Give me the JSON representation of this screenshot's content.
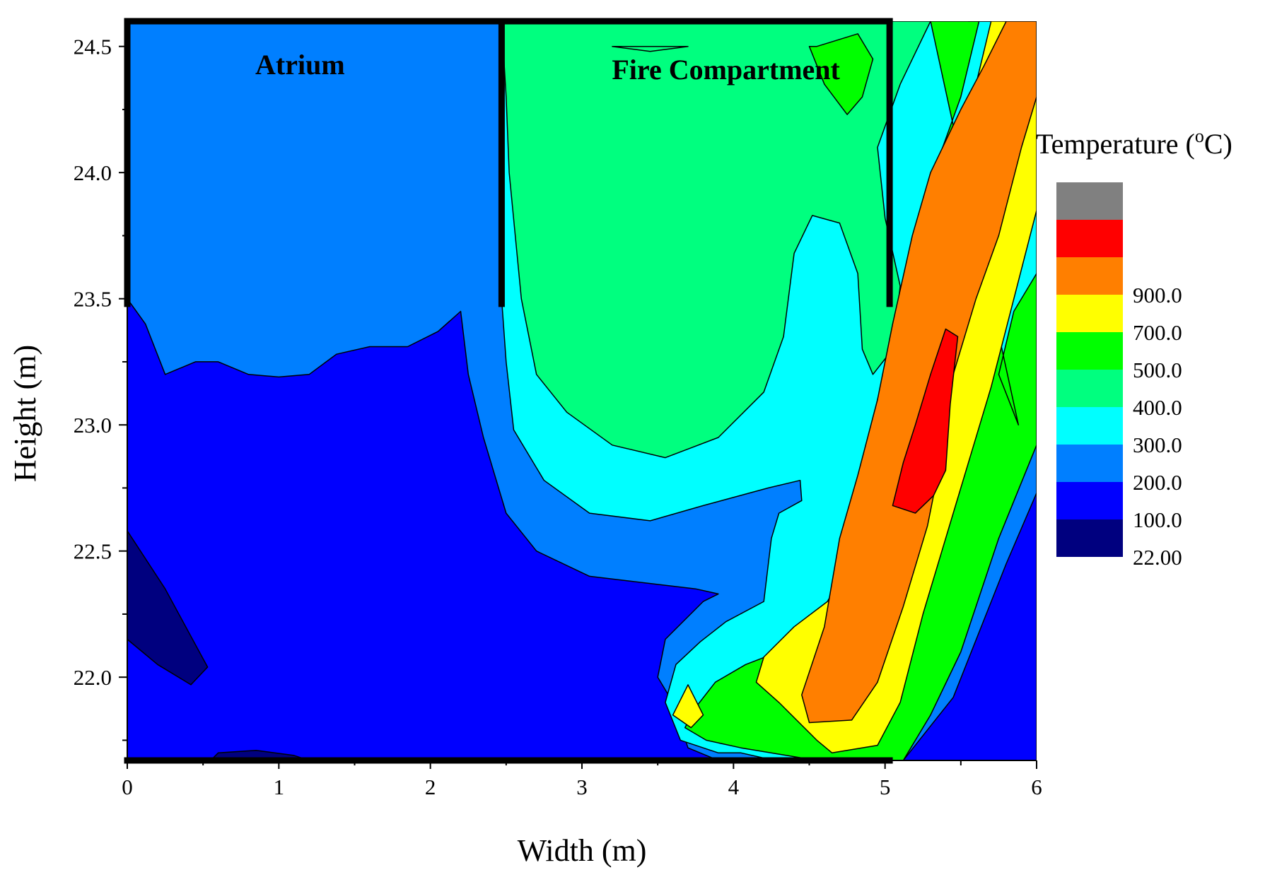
{
  "chart_data": {
    "type": "contour",
    "title": "",
    "xlabel": "Width (m)",
    "ylabel": "Height (m)",
    "xlim": [
      0,
      6
    ],
    "ylim": [
      21.67,
      24.6
    ],
    "x_ticks": [
      0,
      1,
      2,
      3,
      4,
      5,
      6
    ],
    "x_tick_labels": [
      "0",
      "1",
      "2",
      "3",
      "4",
      "5",
      "6"
    ],
    "y_ticks": [
      22.0,
      22.5,
      23.0,
      23.5,
      24.0,
      24.5
    ],
    "y_tick_labels": [
      "22.0",
      "22.5",
      "23.0",
      "23.5",
      "24.0",
      "24.5"
    ],
    "annotations": [
      {
        "id": "atrium",
        "text": "Atrium",
        "x": 1.14,
        "y": 24.39
      },
      {
        "id": "fire",
        "text": "Fire Compartment",
        "x": 3.95,
        "y": 24.37
      }
    ],
    "walls": [
      {
        "from": [
          0.0,
          24.6
        ],
        "to": [
          5.03,
          24.6
        ]
      },
      {
        "from": [
          0.0,
          24.6
        ],
        "to": [
          0.0,
          23.48
        ]
      },
      {
        "from": [
          2.47,
          24.6
        ],
        "to": [
          2.47,
          23.48
        ]
      },
      {
        "from": [
          5.03,
          24.6
        ],
        "to": [
          5.03,
          23.48
        ]
      },
      {
        "from": [
          0.0,
          21.67
        ],
        "to": [
          5.03,
          21.67
        ]
      }
    ],
    "legend": {
      "title": "Temperature (°C)",
      "title_main": "Temperature (",
      "title_sup": "o",
      "title_end": "C)",
      "levels": [
        {
          "label": "",
          "color": "#808080"
        },
        {
          "label": "",
          "color": "#ff0000"
        },
        {
          "label": "900.0",
          "color": "#ff7f00"
        },
        {
          "label": "700.0",
          "color": "#ffff00"
        },
        {
          "label": "500.0",
          "color": "#00ff00"
        },
        {
          "label": "400.0",
          "color": "#00ff7f"
        },
        {
          "label": "300.0",
          "color": "#00ffff"
        },
        {
          "label": "200.0",
          "color": "#007fff"
        },
        {
          "label": "100.0",
          "color": "#0000ff"
        },
        {
          "label": "22.00",
          "color": "#00007f"
        }
      ]
    },
    "regions": [
      {
        "level": "100-200",
        "color": "#0000ff",
        "points": [
          [
            0,
            21.67
          ],
          [
            6,
            21.67
          ],
          [
            6,
            24.6
          ],
          [
            0,
            24.6
          ]
        ]
      },
      {
        "level": "22-100",
        "color": "#00007f",
        "points": [
          [
            0,
            22.58
          ],
          [
            0.25,
            22.35
          ],
          [
            0.53,
            22.04
          ],
          [
            0.42,
            21.97
          ],
          [
            0.2,
            22.05
          ],
          [
            0,
            22.15
          ]
        ]
      },
      {
        "level": "22-100",
        "color": "#00007f",
        "points": [
          [
            0.55,
            21.67
          ],
          [
            0.6,
            21.7
          ],
          [
            0.85,
            21.71
          ],
          [
            1.1,
            21.69
          ],
          [
            1.2,
            21.67
          ]
        ]
      },
      {
        "level": "200-300",
        "color": "#007fff",
        "points": [
          [
            0,
            24.6
          ],
          [
            5.03,
            24.6
          ],
          [
            5.2,
            24.6
          ],
          [
            6,
            24.6
          ],
          [
            6,
            22.73
          ],
          [
            5.8,
            22.45
          ],
          [
            5.45,
            21.92
          ],
          [
            5.12,
            21.67
          ],
          [
            4.3,
            21.67
          ],
          [
            3.9,
            21.67
          ],
          [
            3.7,
            21.72
          ],
          [
            3.6,
            21.9
          ],
          [
            3.5,
            22.0
          ],
          [
            3.55,
            22.15
          ],
          [
            3.8,
            22.3
          ],
          [
            3.9,
            22.33
          ],
          [
            3.75,
            22.35
          ],
          [
            3.05,
            22.4
          ],
          [
            2.7,
            22.5
          ],
          [
            2.5,
            22.65
          ],
          [
            2.35,
            22.95
          ],
          [
            2.25,
            23.2
          ],
          [
            2.2,
            23.45
          ],
          [
            2.05,
            23.37
          ],
          [
            1.85,
            23.31
          ],
          [
            1.6,
            23.31
          ],
          [
            1.38,
            23.28
          ],
          [
            1.2,
            23.2
          ],
          [
            1.0,
            23.19
          ],
          [
            0.8,
            23.2
          ],
          [
            0.6,
            23.25
          ],
          [
            0.45,
            23.25
          ],
          [
            0.25,
            23.2
          ],
          [
            0.12,
            23.4
          ],
          [
            0,
            23.5
          ]
        ]
      },
      {
        "level": "300-400",
        "color": "#00ffff",
        "points": [
          [
            2.47,
            24.6
          ],
          [
            5.1,
            24.6
          ],
          [
            5.27,
            24.6
          ],
          [
            6,
            24.6
          ],
          [
            6,
            23.35
          ],
          [
            5.75,
            23.05
          ],
          [
            5.52,
            22.62
          ],
          [
            5.35,
            22.25
          ],
          [
            5.18,
            21.98
          ],
          [
            4.95,
            21.7
          ],
          [
            4.6,
            21.67
          ],
          [
            4.27,
            21.67
          ],
          [
            4.05,
            21.7
          ],
          [
            3.9,
            21.7
          ],
          [
            3.65,
            21.75
          ],
          [
            3.55,
            21.9
          ],
          [
            3.62,
            22.05
          ],
          [
            3.78,
            22.14
          ],
          [
            3.95,
            22.22
          ],
          [
            4.2,
            22.3
          ],
          [
            4.25,
            22.55
          ],
          [
            4.3,
            22.65
          ],
          [
            4.45,
            22.7
          ],
          [
            4.44,
            22.78
          ],
          [
            4.23,
            22.75
          ],
          [
            3.8,
            22.68
          ],
          [
            3.45,
            22.62
          ],
          [
            3.05,
            22.65
          ],
          [
            2.75,
            22.78
          ],
          [
            2.55,
            22.98
          ],
          [
            2.5,
            23.25
          ],
          [
            2.47,
            23.5
          ]
        ]
      },
      {
        "level": "400-500",
        "color": "#00ff7f",
        "points": [
          [
            2.47,
            24.6
          ],
          [
            5.05,
            24.6
          ],
          [
            5.3,
            24.6
          ],
          [
            5.1,
            24.35
          ],
          [
            4.95,
            24.1
          ],
          [
            5.0,
            23.82
          ],
          [
            5.1,
            23.55
          ],
          [
            5.05,
            23.3
          ],
          [
            4.92,
            23.2
          ],
          [
            4.85,
            23.3
          ],
          [
            4.82,
            23.6
          ],
          [
            4.7,
            23.8
          ],
          [
            4.52,
            23.83
          ],
          [
            4.4,
            23.68
          ],
          [
            4.33,
            23.35
          ],
          [
            4.2,
            23.13
          ],
          [
            3.9,
            22.95
          ],
          [
            3.55,
            22.87
          ],
          [
            3.2,
            22.92
          ],
          [
            2.9,
            23.05
          ],
          [
            2.7,
            23.2
          ],
          [
            2.6,
            23.5
          ],
          [
            2.52,
            24.0
          ],
          [
            2.5,
            24.3
          ]
        ]
      },
      {
        "level": "500-700",
        "color": "#00ff00",
        "points": [
          [
            5.3,
            24.6
          ],
          [
            5.62,
            24.6
          ],
          [
            5.5,
            24.3
          ],
          [
            5.32,
            24.0
          ],
          [
            5.18,
            23.7
          ],
          [
            5.08,
            23.4
          ],
          [
            4.95,
            23.1
          ],
          [
            4.82,
            22.7
          ],
          [
            4.7,
            22.45
          ],
          [
            4.62,
            22.26
          ],
          [
            4.38,
            22.12
          ],
          [
            4.08,
            22.05
          ],
          [
            3.88,
            21.98
          ],
          [
            3.75,
            21.88
          ],
          [
            3.68,
            21.8
          ],
          [
            3.82,
            21.75
          ],
          [
            4.05,
            21.72
          ],
          [
            4.35,
            21.69
          ],
          [
            4.55,
            21.67
          ],
          [
            5.12,
            21.67
          ],
          [
            5.3,
            21.85
          ],
          [
            5.5,
            22.1
          ],
          [
            5.75,
            22.55
          ],
          [
            6,
            22.92
          ],
          [
            6,
            23.6
          ],
          [
            5.85,
            23.45
          ],
          [
            5.75,
            23.2
          ],
          [
            5.88,
            23.0
          ]
        ]
      },
      {
        "level": "500-700",
        "color": "#00ff00",
        "points": [
          [
            4.5,
            24.5
          ],
          [
            4.55,
            24.5
          ],
          [
            4.82,
            24.55
          ],
          [
            4.92,
            24.45
          ],
          [
            4.85,
            24.3
          ],
          [
            4.75,
            24.23
          ],
          [
            4.6,
            24.35
          ]
        ]
      },
      {
        "level": "700-900",
        "color": "#ffff00",
        "points": [
          [
            5.55,
            24.6
          ],
          [
            5.7,
            24.6
          ],
          [
            5.6,
            24.35
          ],
          [
            5.5,
            24.15
          ],
          [
            5.3,
            23.9
          ],
          [
            5.22,
            23.6
          ],
          [
            5.12,
            23.35
          ],
          [
            4.98,
            22.85
          ],
          [
            4.85,
            22.55
          ],
          [
            4.62,
            22.3
          ],
          [
            4.4,
            22.2
          ],
          [
            4.2,
            22.08
          ],
          [
            4.15,
            21.98
          ],
          [
            4.3,
            21.9
          ],
          [
            4.55,
            21.75
          ],
          [
            4.65,
            21.7
          ],
          [
            4.95,
            21.73
          ],
          [
            5.1,
            21.9
          ],
          [
            5.25,
            22.25
          ],
          [
            5.45,
            22.65
          ],
          [
            5.7,
            23.15
          ],
          [
            6,
            23.85
          ],
          [
            6,
            24.6
          ]
        ]
      },
      {
        "level": "700-900",
        "color": "#ffff00",
        "points": [
          [
            3.6,
            21.85
          ],
          [
            3.7,
            21.97
          ],
          [
            3.8,
            21.85
          ],
          [
            3.72,
            21.8
          ]
        ]
      },
      {
        "level": "900-",
        "color": "#ff7f00",
        "points": [
          [
            5.8,
            24.6
          ],
          [
            6,
            24.6
          ],
          [
            6,
            24.3
          ],
          [
            5.9,
            24.1
          ],
          [
            5.75,
            23.75
          ],
          [
            5.6,
            23.5
          ],
          [
            5.45,
            23.2
          ],
          [
            5.38,
            22.9
          ],
          [
            5.28,
            22.6
          ],
          [
            5.12,
            22.28
          ],
          [
            4.95,
            21.98
          ],
          [
            4.78,
            21.83
          ],
          [
            4.5,
            21.82
          ],
          [
            4.45,
            21.93
          ],
          [
            4.6,
            22.2
          ],
          [
            4.7,
            22.55
          ],
          [
            4.82,
            22.8
          ],
          [
            4.95,
            23.1
          ],
          [
            5.05,
            23.4
          ],
          [
            5.18,
            23.75
          ],
          [
            5.3,
            24.0
          ],
          [
            5.5,
            24.25
          ],
          [
            5.65,
            24.42
          ]
        ]
      },
      {
        "level": "900+",
        "color": "#ff0000",
        "points": [
          [
            5.05,
            22.68
          ],
          [
            5.2,
            22.65
          ],
          [
            5.32,
            22.72
          ],
          [
            5.4,
            22.82
          ],
          [
            5.43,
            23.08
          ],
          [
            5.48,
            23.35
          ],
          [
            5.4,
            23.38
          ],
          [
            5.3,
            23.2
          ],
          [
            5.2,
            23.0
          ],
          [
            5.12,
            22.85
          ]
        ]
      },
      {
        "level": "400-500",
        "color": "#00ff7f",
        "points": [
          [
            3.2,
            24.5
          ],
          [
            3.7,
            24.5
          ],
          [
            3.45,
            24.48
          ]
        ]
      }
    ]
  }
}
